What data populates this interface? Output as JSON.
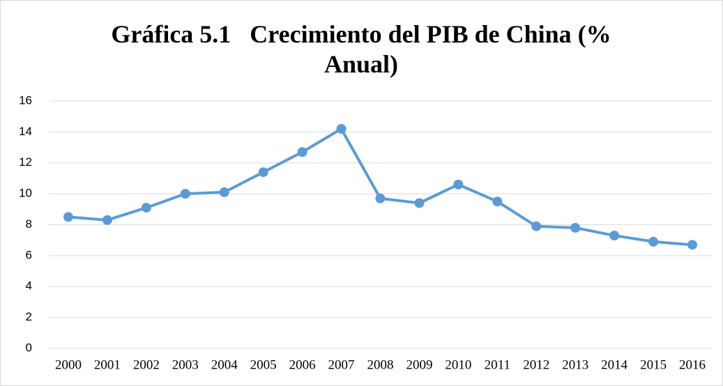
{
  "chart_data": {
    "type": "line",
    "title": "Gráfica 5.1   Crecimiento del PIB de China (% Anual)",
    "categories": [
      "2000",
      "2001",
      "2002",
      "2003",
      "2004",
      "2005",
      "2006",
      "2007",
      "2008",
      "2009",
      "2010",
      "2011",
      "2012",
      "2013",
      "2014",
      "2015",
      "2016"
    ],
    "series": [
      {
        "name": "Crecimiento del PIB",
        "color": "#5b9bd5",
        "values": [
          8.5,
          8.3,
          9.1,
          10.0,
          10.1,
          11.4,
          12.7,
          14.2,
          9.7,
          9.4,
          10.6,
          9.5,
          7.9,
          7.8,
          7.3,
          6.9,
          6.7
        ]
      }
    ],
    "ylim": [
      0,
      16
    ],
    "yticks": [
      0,
      2,
      4,
      6,
      8,
      10,
      12,
      14,
      16
    ],
    "grid": true
  }
}
